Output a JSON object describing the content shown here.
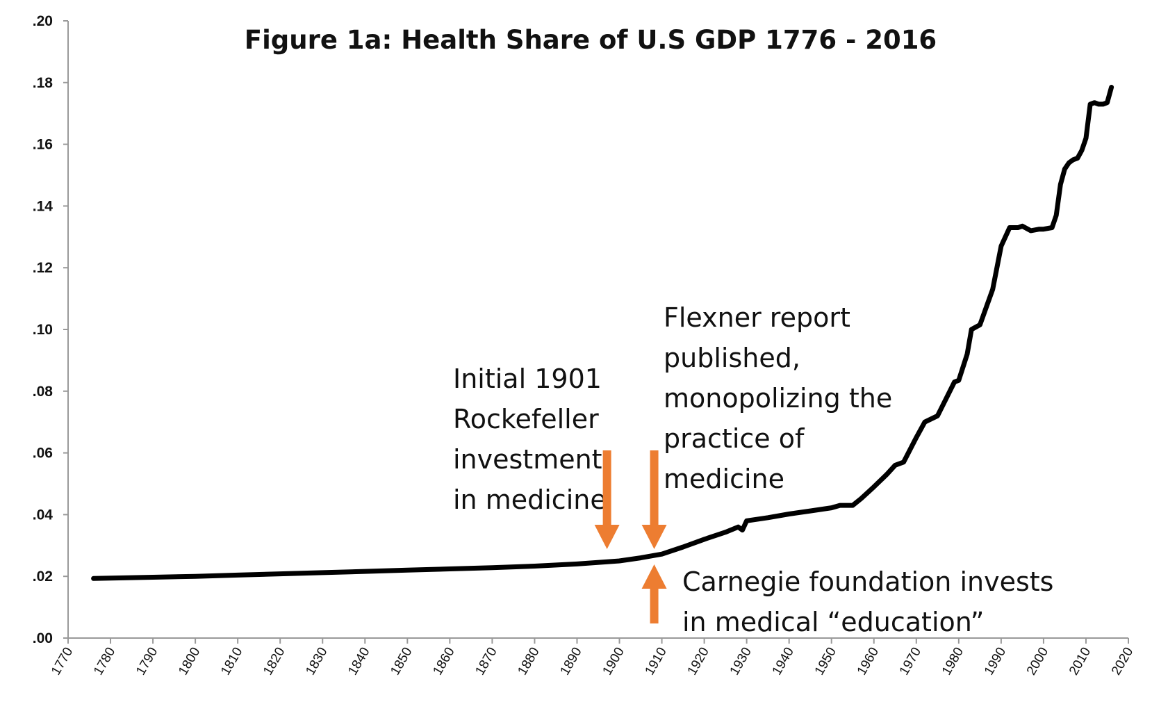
{
  "chart_data": {
    "type": "line",
    "title": "Figure 1a:  Health Share of U.S GDP  1776 - 2016",
    "xlabel": "",
    "ylabel": "",
    "xlim": [
      1770,
      2020
    ],
    "ylim": [
      0,
      0.2
    ],
    "y_ticks": [
      ".00",
      ".02",
      ".04",
      ".06",
      ".08",
      ".10",
      ".12",
      ".14",
      ".16",
      ".18",
      ".20"
    ],
    "x_ticks": [
      "1770",
      "1780",
      "1790",
      "1800",
      "1810",
      "1820",
      "1830",
      "1840",
      "1850",
      "1860",
      "1870",
      "1880",
      "1890",
      "1900",
      "1910",
      "1920",
      "1930",
      "1940",
      "1950",
      "1960",
      "1970",
      "1980",
      "1990",
      "2000",
      "2010",
      "2020"
    ],
    "grid": false,
    "legend": "none",
    "line_color": "#000000",
    "series": [
      {
        "x": [
          1776,
          1790,
          1800,
          1810,
          1820,
          1830,
          1840,
          1850,
          1860,
          1870,
          1880,
          1890,
          1900,
          1905,
          1910,
          1915,
          1920,
          1925,
          1928,
          1929,
          1930,
          1935,
          1940,
          1945,
          1950,
          1952,
          1955,
          1957,
          1960,
          1963,
          1965,
          1967,
          1970,
          1972,
          1975,
          1977,
          1979,
          1980,
          1982,
          1983,
          1985,
          1988,
          1990,
          1992,
          1994,
          1995,
          1997,
          1999,
          2000,
          2002,
          2003,
          2004,
          2005,
          2006,
          2007,
          2008,
          2009,
          2010,
          2011,
          2012,
          2013,
          2014,
          2015,
          2016
        ],
        "y": [
          0.0193,
          0.0197,
          0.02,
          0.0204,
          0.0208,
          0.0212,
          0.0216,
          0.022,
          0.0224,
          0.0228,
          0.0233,
          0.024,
          0.025,
          0.026,
          0.0272,
          0.0295,
          0.032,
          0.0343,
          0.036,
          0.035,
          0.038,
          0.039,
          0.0402,
          0.0412,
          0.0422,
          0.043,
          0.043,
          0.0452,
          0.049,
          0.053,
          0.056,
          0.057,
          0.065,
          0.07,
          0.072,
          0.0775,
          0.083,
          0.0835,
          0.092,
          0.1,
          0.1015,
          0.113,
          0.127,
          0.133,
          0.133,
          0.1335,
          0.132,
          0.1325,
          0.1325,
          0.133,
          0.137,
          0.147,
          0.152,
          0.154,
          0.155,
          0.1555,
          0.158,
          0.162,
          0.173,
          0.1735,
          0.173,
          0.173,
          0.1735,
          0.1785
        ]
      }
    ],
    "annotations": [
      {
        "lines": [
          "Initial 1901",
          "Rockefeller",
          "investment",
          "in medicine"
        ],
        "arrow_year": 1901,
        "arrow_direction": "down",
        "arrow_color": "#ED7D31"
      },
      {
        "lines": [
          "Flexner report",
          "published,",
          "monopolizing the",
          "practice of",
          "medicine"
        ],
        "arrow_year": 1910,
        "arrow_direction": "down",
        "arrow_color": "#ED7D31"
      },
      {
        "lines": [
          "Carnegie foundation invests",
          "in medical “education”"
        ],
        "arrow_year": 1910,
        "arrow_direction": "up",
        "arrow_color": "#ED7D31"
      }
    ]
  }
}
